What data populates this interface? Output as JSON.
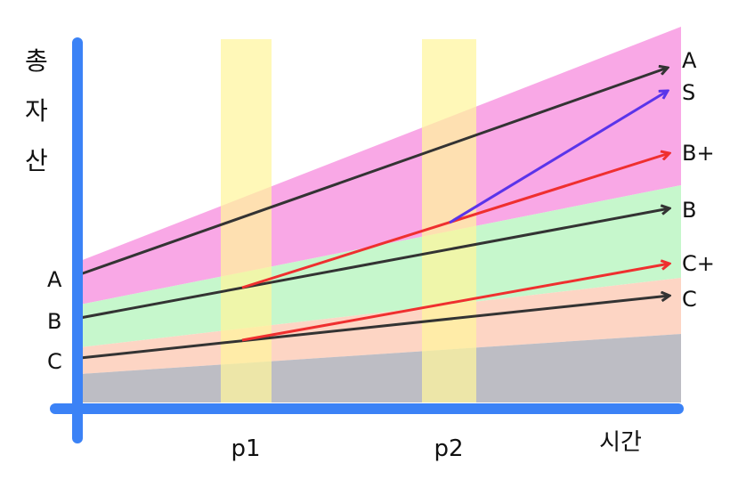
{
  "y_axis_title": [
    "총",
    "자",
    "산"
  ],
  "x_axis_title": "시간",
  "x_ticks": [
    "p1",
    "p2"
  ],
  "start_labels": [
    "A",
    "B",
    "C"
  ],
  "end_labels": [
    "A",
    "S",
    "B+",
    "B",
    "C+",
    "C"
  ],
  "colors": {
    "axis": "#3b82f6",
    "highlight": "#fff59d",
    "zone_A": "#f9a8e6",
    "zone_B": "#c6f7cc",
    "zone_C": "#fdd5c4",
    "zone_base": "#bdbdc4",
    "arrow_base": "#333333",
    "arrow_upgrade": "#ef2f2f",
    "arrow_top": "#5a34ea"
  }
}
